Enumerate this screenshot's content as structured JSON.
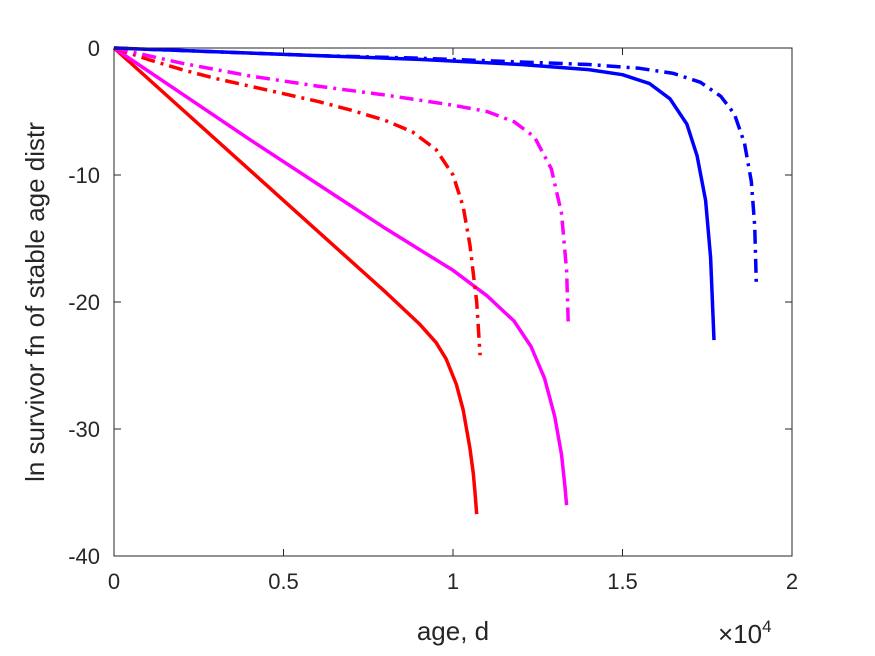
{
  "chart_data": {
    "type": "line",
    "title": "",
    "xlabel": "age, d",
    "ylabel": "ln survivor fn of stable age distr",
    "xlim": [
      0,
      20000
    ],
    "ylim": [
      -40,
      0
    ],
    "x_ticks": [
      0,
      5000,
      10000,
      15000,
      20000
    ],
    "x_tick_labels": [
      "0",
      "0.5",
      "1",
      "1.5",
      "2"
    ],
    "x_exponent_label": {
      "base": "×10",
      "power": "4"
    },
    "y_ticks": [
      0,
      -10,
      -20,
      -30,
      -40
    ],
    "y_tick_labels": [
      "0",
      "-10",
      "-20",
      "-30",
      "-40"
    ],
    "grid": false,
    "legend": "none",
    "series": [
      {
        "color": "#ff0000",
        "style": "solid",
        "x": [
          0,
          2000,
          4000,
          6000,
          8000,
          9000,
          9500,
          9800,
          10100,
          10300,
          10500,
          10600,
          10650,
          10700
        ],
        "y": [
          0,
          -4.8,
          -9.6,
          -14.4,
          -19.2,
          -21.7,
          -23.2,
          -24.5,
          -26.5,
          -28.5,
          -31.5,
          -33.5,
          -35.0,
          -36.7
        ]
      },
      {
        "color": "#ff00ff",
        "style": "solid",
        "x": [
          0,
          2000,
          4000,
          6000,
          8000,
          10000,
          11000,
          11800,
          12300,
          12700,
          13000,
          13200,
          13300,
          13350
        ],
        "y": [
          0,
          -3.6,
          -7.2,
          -10.7,
          -14.2,
          -17.5,
          -19.5,
          -21.5,
          -23.5,
          -26.0,
          -29.0,
          -32.0,
          -34.5,
          -36.0
        ]
      },
      {
        "color": "#0000ff",
        "style": "solid",
        "x": [
          0,
          3000,
          6000,
          9000,
          12000,
          14000,
          15000,
          15800,
          16400,
          16900,
          17200,
          17450,
          17600,
          17700
        ],
        "y": [
          0,
          -0.3,
          -0.6,
          -0.9,
          -1.3,
          -1.7,
          -2.1,
          -2.8,
          -4.0,
          -6.0,
          -8.5,
          -12.0,
          -16.5,
          -23.0
        ]
      },
      {
        "color": "#ff0000",
        "style": "dashdot",
        "x": [
          0,
          1000,
          2000,
          3000,
          4000,
          5000,
          6000,
          7000,
          8000,
          8800,
          9500,
          10000,
          10300,
          10500,
          10700,
          10800
        ],
        "y": [
          0,
          -0.9,
          -1.7,
          -2.4,
          -3.0,
          -3.6,
          -4.2,
          -4.9,
          -5.7,
          -6.6,
          -8.0,
          -10.0,
          -12.5,
          -15.5,
          -20.0,
          -24.2
        ]
      },
      {
        "color": "#ff00ff",
        "style": "dashdot",
        "x": [
          0,
          2000,
          4000,
          6000,
          8000,
          10000,
          11000,
          11800,
          12400,
          12900,
          13200,
          13350,
          13400
        ],
        "y": [
          0,
          -1.2,
          -2.2,
          -3.0,
          -3.7,
          -4.5,
          -5.0,
          -5.8,
          -7.0,
          -9.5,
          -13.0,
          -17.5,
          -21.8
        ]
      },
      {
        "color": "#0000ff",
        "style": "dashdot",
        "x": [
          0,
          3000,
          6000,
          9000,
          12000,
          14000,
          15500,
          16500,
          17300,
          17900,
          18300,
          18600,
          18800,
          18900,
          18950
        ],
        "y": [
          0,
          -0.3,
          -0.6,
          -0.8,
          -1.1,
          -1.3,
          -1.6,
          -2.0,
          -2.7,
          -3.8,
          -5.2,
          -7.5,
          -10.5,
          -14.0,
          -18.8
        ]
      }
    ]
  }
}
